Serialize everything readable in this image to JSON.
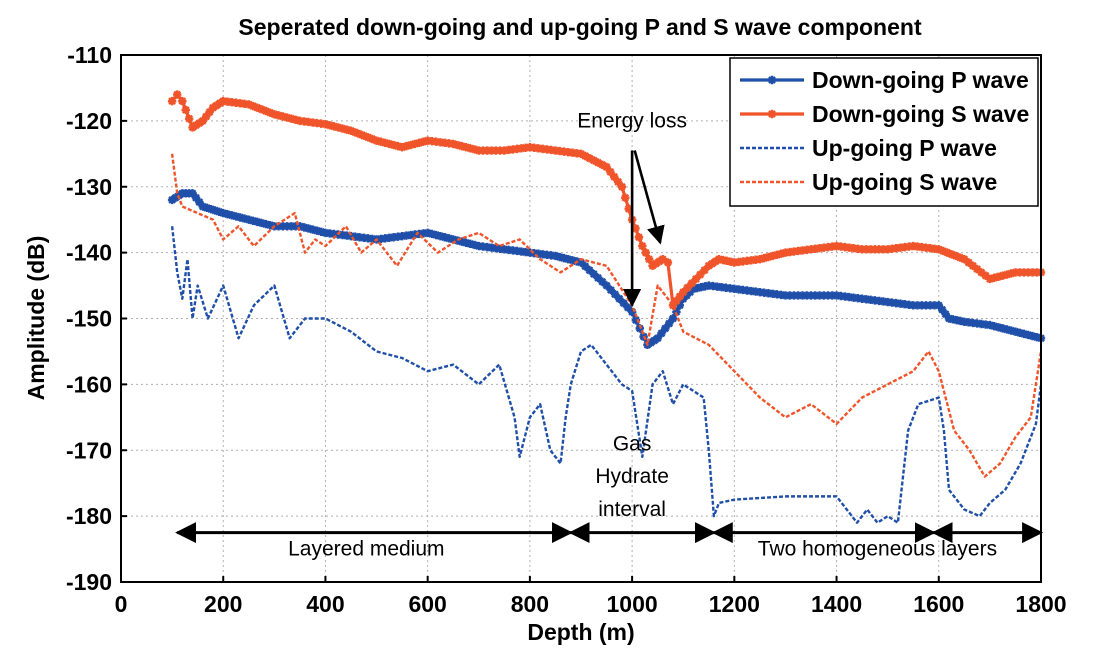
{
  "chart_data": {
    "type": "line",
    "title": "Seperated down-going and up-going P and S wave component",
    "xlabel": "Depth (m)",
    "ylabel": "Amplitude (dB)",
    "xlim": [
      0,
      1800
    ],
    "ylim": [
      -190,
      -110
    ],
    "xticks": [
      0,
      200,
      400,
      600,
      800,
      1000,
      1200,
      1400,
      1600,
      1800
    ],
    "yticks": [
      -110,
      -120,
      -130,
      -140,
      -150,
      -160,
      -170,
      -180,
      -190
    ],
    "grid": true,
    "legend_position": "top-right",
    "series": [
      {
        "name": "Down-going P wave",
        "color": "#1f4fa8",
        "style": "solid-star",
        "points": [
          [
            100,
            -132
          ],
          [
            120,
            -131
          ],
          [
            140,
            -131
          ],
          [
            160,
            -133
          ],
          [
            200,
            -134
          ],
          [
            250,
            -135
          ],
          [
            300,
            -136
          ],
          [
            350,
            -136
          ],
          [
            400,
            -137
          ],
          [
            450,
            -137.5
          ],
          [
            500,
            -138
          ],
          [
            550,
            -137.5
          ],
          [
            600,
            -137
          ],
          [
            650,
            -138
          ],
          [
            700,
            -139
          ],
          [
            750,
            -139.5
          ],
          [
            800,
            -140
          ],
          [
            850,
            -140.5
          ],
          [
            900,
            -141.5
          ],
          [
            950,
            -145
          ],
          [
            1000,
            -149
          ],
          [
            1030,
            -154
          ],
          [
            1050,
            -153
          ],
          [
            1080,
            -150
          ],
          [
            1100,
            -147
          ],
          [
            1120,
            -145.5
          ],
          [
            1150,
            -145
          ],
          [
            1200,
            -145.5
          ],
          [
            1250,
            -146
          ],
          [
            1300,
            -146.5
          ],
          [
            1350,
            -146.5
          ],
          [
            1400,
            -146.5
          ],
          [
            1450,
            -147
          ],
          [
            1500,
            -147.5
          ],
          [
            1550,
            -148
          ],
          [
            1600,
            -148
          ],
          [
            1620,
            -150
          ],
          [
            1650,
            -150.5
          ],
          [
            1700,
            -151
          ],
          [
            1750,
            -152
          ],
          [
            1800,
            -153
          ]
        ]
      },
      {
        "name": "Down-going S wave",
        "color": "#f0542a",
        "style": "solid-star",
        "points": [
          [
            100,
            -117
          ],
          [
            110,
            -116
          ],
          [
            120,
            -117
          ],
          [
            140,
            -121
          ],
          [
            160,
            -120
          ],
          [
            180,
            -118
          ],
          [
            200,
            -117
          ],
          [
            250,
            -117.5
          ],
          [
            300,
            -119
          ],
          [
            350,
            -120
          ],
          [
            400,
            -120.5
          ],
          [
            450,
            -121.5
          ],
          [
            500,
            -123
          ],
          [
            550,
            -124
          ],
          [
            600,
            -123
          ],
          [
            650,
            -123.5
          ],
          [
            700,
            -124.5
          ],
          [
            750,
            -124.5
          ],
          [
            800,
            -124
          ],
          [
            850,
            -124.5
          ],
          [
            900,
            -125
          ],
          [
            950,
            -127
          ],
          [
            980,
            -130
          ],
          [
            1000,
            -135
          ],
          [
            1020,
            -139
          ],
          [
            1040,
            -142
          ],
          [
            1060,
            -141
          ],
          [
            1070,
            -141.5
          ],
          [
            1080,
            -148
          ],
          [
            1100,
            -146
          ],
          [
            1150,
            -142
          ],
          [
            1170,
            -141
          ],
          [
            1200,
            -141.5
          ],
          [
            1250,
            -141
          ],
          [
            1300,
            -140
          ],
          [
            1350,
            -139.5
          ],
          [
            1400,
            -139
          ],
          [
            1450,
            -139.5
          ],
          [
            1500,
            -139.5
          ],
          [
            1550,
            -139
          ],
          [
            1600,
            -139.5
          ],
          [
            1650,
            -141
          ],
          [
            1700,
            -144
          ],
          [
            1750,
            -143
          ],
          [
            1800,
            -143
          ]
        ]
      },
      {
        "name": "Up-going P wave",
        "color": "#1f4fa8",
        "style": "dashed",
        "points": [
          [
            100,
            -136
          ],
          [
            110,
            -143
          ],
          [
            120,
            -147
          ],
          [
            130,
            -141
          ],
          [
            140,
            -150
          ],
          [
            150,
            -145
          ],
          [
            170,
            -150
          ],
          [
            200,
            -145
          ],
          [
            230,
            -153
          ],
          [
            260,
            -148
          ],
          [
            300,
            -145
          ],
          [
            330,
            -153
          ],
          [
            360,
            -150
          ],
          [
            400,
            -150
          ],
          [
            450,
            -152
          ],
          [
            500,
            -155
          ],
          [
            550,
            -156
          ],
          [
            600,
            -158
          ],
          [
            650,
            -157
          ],
          [
            700,
            -160
          ],
          [
            740,
            -157
          ],
          [
            770,
            -165
          ],
          [
            780,
            -171
          ],
          [
            800,
            -165
          ],
          [
            820,
            -163
          ],
          [
            840,
            -170
          ],
          [
            860,
            -172
          ],
          [
            870,
            -165
          ],
          [
            880,
            -160
          ],
          [
            900,
            -155
          ],
          [
            920,
            -154
          ],
          [
            950,
            -157
          ],
          [
            980,
            -160
          ],
          [
            1000,
            -161
          ],
          [
            1020,
            -171
          ],
          [
            1040,
            -160
          ],
          [
            1060,
            -158
          ],
          [
            1080,
            -163
          ],
          [
            1100,
            -160
          ],
          [
            1140,
            -162
          ],
          [
            1150,
            -170
          ],
          [
            1160,
            -180
          ],
          [
            1170,
            -178
          ],
          [
            1200,
            -177.5
          ],
          [
            1300,
            -177
          ],
          [
            1400,
            -177
          ],
          [
            1440,
            -181
          ],
          [
            1460,
            -179
          ],
          [
            1480,
            -181
          ],
          [
            1500,
            -180
          ],
          [
            1520,
            -181
          ],
          [
            1540,
            -167
          ],
          [
            1560,
            -163
          ],
          [
            1600,
            -162
          ],
          [
            1610,
            -167
          ],
          [
            1620,
            -176
          ],
          [
            1650,
            -179
          ],
          [
            1680,
            -180
          ],
          [
            1700,
            -178
          ],
          [
            1730,
            -176
          ],
          [
            1760,
            -172
          ],
          [
            1790,
            -166
          ],
          [
            1800,
            -160
          ]
        ]
      },
      {
        "name": "Up-going S wave",
        "color": "#f0542a",
        "style": "dashed",
        "points": [
          [
            100,
            -125
          ],
          [
            110,
            -131
          ],
          [
            120,
            -133
          ],
          [
            150,
            -134
          ],
          [
            180,
            -135
          ],
          [
            200,
            -138
          ],
          [
            230,
            -136
          ],
          [
            260,
            -139
          ],
          [
            300,
            -136
          ],
          [
            340,
            -134
          ],
          [
            360,
            -140
          ],
          [
            380,
            -138
          ],
          [
            400,
            -139
          ],
          [
            440,
            -136
          ],
          [
            470,
            -140
          ],
          [
            500,
            -138
          ],
          [
            540,
            -142
          ],
          [
            580,
            -137
          ],
          [
            620,
            -140
          ],
          [
            660,
            -138
          ],
          [
            700,
            -137
          ],
          [
            740,
            -139
          ],
          [
            780,
            -138
          ],
          [
            820,
            -141
          ],
          [
            860,
            -143
          ],
          [
            900,
            -141
          ],
          [
            950,
            -142
          ],
          [
            1000,
            -148
          ],
          [
            1030,
            -154
          ],
          [
            1050,
            -145
          ],
          [
            1080,
            -148
          ],
          [
            1100,
            -152
          ],
          [
            1150,
            -154
          ],
          [
            1200,
            -158
          ],
          [
            1250,
            -162
          ],
          [
            1300,
            -165
          ],
          [
            1350,
            -163
          ],
          [
            1400,
            -166
          ],
          [
            1450,
            -162
          ],
          [
            1500,
            -160
          ],
          [
            1550,
            -158
          ],
          [
            1580,
            -155
          ],
          [
            1600,
            -158
          ],
          [
            1630,
            -167
          ],
          [
            1660,
            -170
          ],
          [
            1690,
            -174
          ],
          [
            1720,
            -172
          ],
          [
            1750,
            -168
          ],
          [
            1780,
            -165
          ],
          [
            1800,
            -155
          ]
        ]
      }
    ],
    "annotations": [
      {
        "text": "Energy loss",
        "x": 1000,
        "y": -121
      },
      {
        "text": "Gas",
        "x": 1000,
        "y": -170
      },
      {
        "text": "Hydrate",
        "x": 1000,
        "y": -175
      },
      {
        "text": "interval",
        "x": 1000,
        "y": -180
      },
      {
        "text": "Layered medium",
        "x": 480,
        "y": -186
      },
      {
        "text": "Two homogeneous layers",
        "x": 1480,
        "y": -186
      }
    ],
    "arrows": [
      {
        "from": [
          1000,
          -124.5
        ],
        "to": [
          1000,
          -148
        ]
      },
      {
        "from": [
          1005,
          -124.5
        ],
        "to": [
          1055,
          -138.5
        ]
      }
    ],
    "intervals": [
      {
        "x_start": 110,
        "x_end": 880,
        "y": -182.5
      },
      {
        "x_start": 880,
        "x_end": 1160,
        "y": -182.5
      },
      {
        "x_start": 1160,
        "x_end": 1590,
        "y": -182.5
      },
      {
        "x_start": 1590,
        "x_end": 1800,
        "y": -182.5
      }
    ]
  }
}
